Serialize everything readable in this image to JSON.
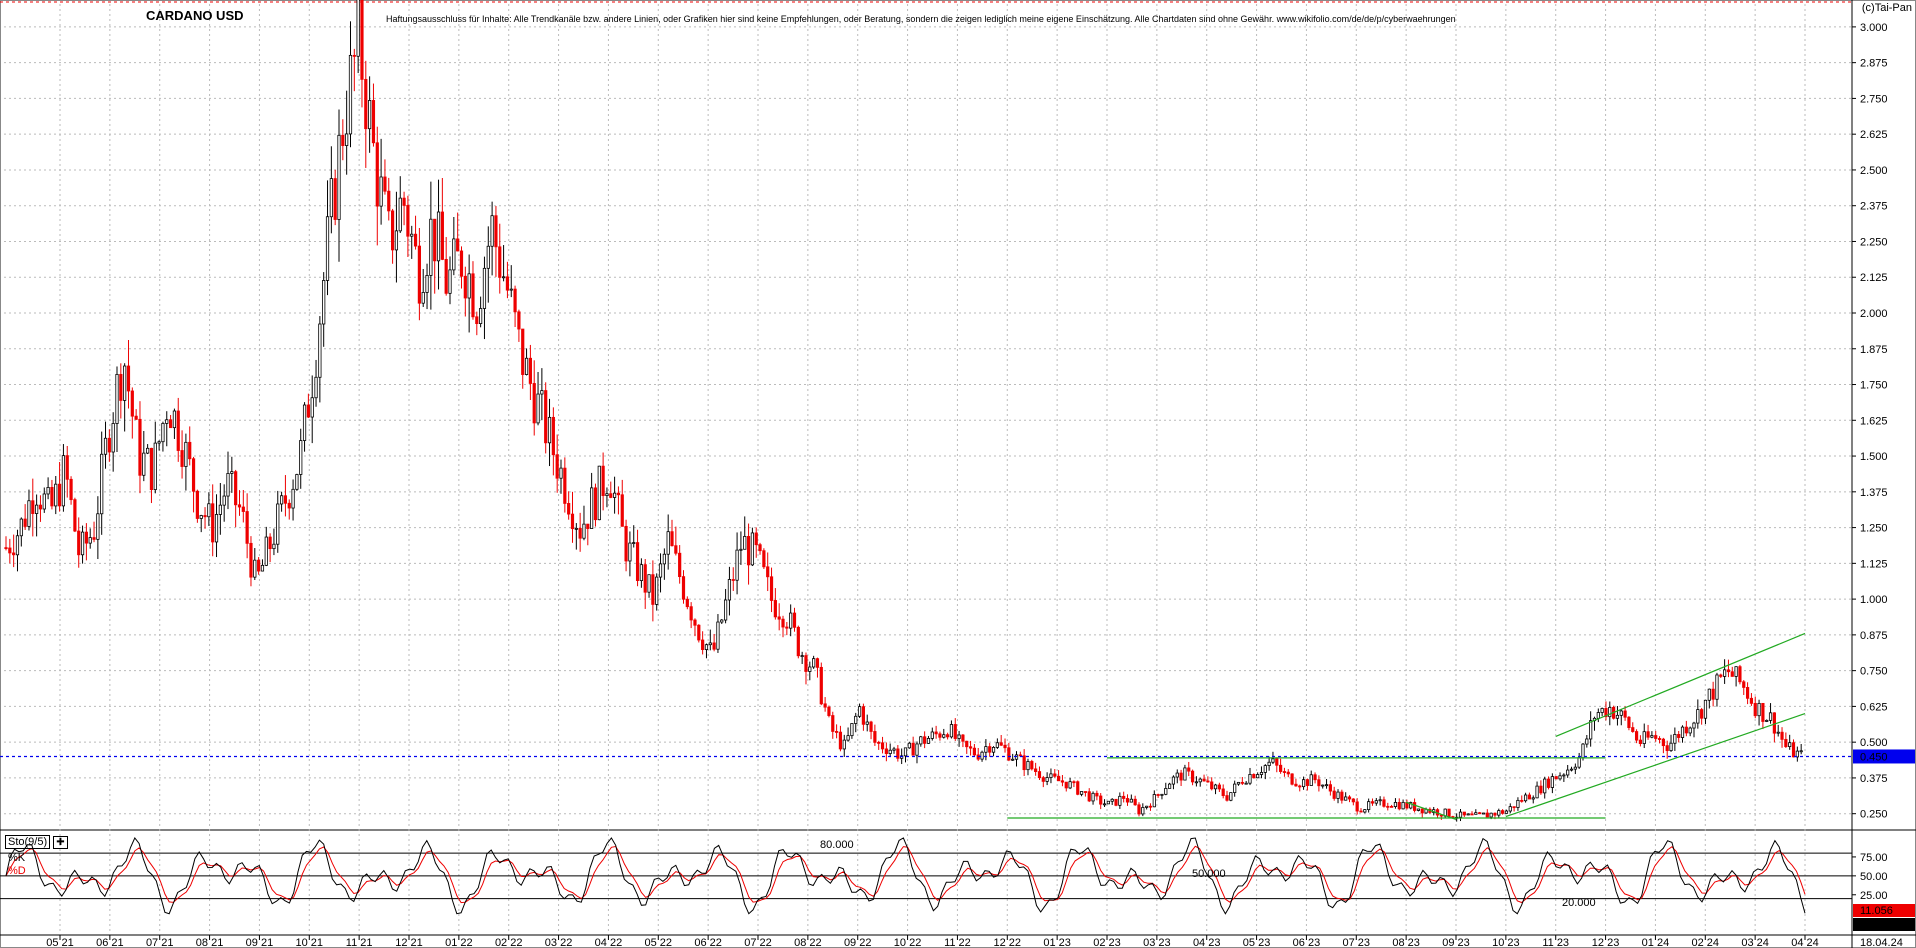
{
  "title": "CARDANO USD",
  "disclaimer": "Haftungsausschluss für Inhalte: Alle Trendkanäle bzw. andere Linien, oder Grafiken hier sind keine Empfehlungen, oder Beratung, sondern die zeigen lediglich meine eigene Einschätzung. Alle Chartdaten sind ohne Gewähr.  www.wikifolio.com/de/de/p/cyberwaehrungen",
  "credit": "(c)Tai-Pan",
  "indicator": {
    "name": "Sto(9/5)",
    "k_label": "%K",
    "d_label": "%D",
    "levels": [
      "80.000",
      "50.000",
      "20.000"
    ]
  },
  "colors": {
    "up": "#000000",
    "down": "#ee0000",
    "trend": "#22aa22",
    "price_line": "#0000ee",
    "grid": "#bbbbbb",
    "k": "#000000",
    "d": "#ee0000"
  },
  "chart_data": [
    {
      "type": "candlestick",
      "title": "CARDANO USD",
      "y_ticks": [
        "3.000",
        "2.875",
        "2.750",
        "2.625",
        "2.500",
        "2.375",
        "2.250",
        "2.125",
        "2.000",
        "1.875",
        "1.750",
        "1.625",
        "1.500",
        "1.375",
        "1.250",
        "1.125",
        "1.000",
        "0.875",
        "0.750",
        "0.625",
        "0.500",
        "0.375",
        "0.250"
      ],
      "ylim": [
        0.2,
        3.08
      ],
      "x_labels": [
        "05 21",
        "06 21",
        "07 21",
        "08 21",
        "09 21",
        "10 21",
        "11 21",
        "12 21",
        "01 22",
        "02 22",
        "03 22",
        "04 22",
        "05 22",
        "06 22",
        "07 22",
        "08 22",
        "09 22",
        "10 22",
        "11 22",
        "12 22",
        "01 23",
        "02 23",
        "03 23",
        "04 23",
        "05 23",
        "06 23",
        "07 23",
        "08 23",
        "09 23",
        "10 23",
        "11 23",
        "12 23",
        "01 24",
        "02 24",
        "03 24",
        "04 24"
      ],
      "last_price": "0.450",
      "last_date": "18.04.24",
      "close_path": [
        1.18,
        1.25,
        1.4,
        1.3,
        1.45,
        1.15,
        1.25,
        1.6,
        1.85,
        1.5,
        1.45,
        1.7,
        1.55,
        1.35,
        1.25,
        1.4,
        1.3,
        1.05,
        1.2,
        1.35,
        1.5,
        1.85,
        2.3,
        2.7,
        2.95,
        2.55,
        2.25,
        2.4,
        2.15,
        2.3,
        2.1,
        2.2,
        2.05,
        2.3,
        2.1,
        1.85,
        1.7,
        1.55,
        1.4,
        1.25,
        1.35,
        1.45,
        1.2,
        1.1,
        1.0,
        1.2,
        1.05,
        0.9,
        0.8,
        1.0,
        1.2,
        1.15,
        1.0,
        0.95,
        0.82,
        0.75,
        0.55,
        0.48,
        0.62,
        0.5,
        0.48,
        0.45,
        0.5,
        0.52,
        0.55,
        0.48,
        0.46,
        0.5,
        0.47,
        0.43,
        0.4,
        0.37,
        0.36,
        0.33,
        0.3,
        0.28,
        0.31,
        0.26,
        0.3,
        0.36,
        0.39,
        0.37,
        0.34,
        0.31,
        0.37,
        0.4,
        0.43,
        0.38,
        0.36,
        0.37,
        0.33,
        0.3,
        0.27,
        0.28,
        0.29,
        0.28,
        0.27,
        0.26,
        0.25,
        0.24,
        0.24,
        0.25,
        0.26,
        0.3,
        0.33,
        0.37,
        0.4,
        0.45,
        0.6,
        0.62,
        0.58,
        0.5,
        0.52,
        0.49,
        0.55,
        0.6,
        0.68,
        0.75,
        0.7,
        0.62,
        0.58,
        0.48,
        0.45
      ],
      "trendlines": [
        {
          "from": [
            "02 23",
            0.445
          ],
          "to": [
            "06 23",
            0.445
          ]
        },
        {
          "from": [
            "12 22",
            0.235
          ],
          "to": [
            "12 23",
            0.235
          ]
        },
        {
          "from": [
            "06 23",
            0.445
          ],
          "to": [
            "12 23",
            0.445
          ]
        },
        {
          "from": [
            "08 23",
            0.29
          ],
          "to": [
            "09 23",
            0.23
          ]
        },
        {
          "from": [
            "10 23",
            0.24
          ],
          "to": [
            "04 24",
            0.6
          ]
        },
        {
          "from": [
            "11 23",
            0.52
          ],
          "to": [
            "04 24",
            0.88
          ]
        }
      ]
    },
    {
      "type": "line",
      "title": "Sto(9/5)",
      "y_ticks": [
        "75.00",
        "50.00",
        "25.00"
      ],
      "levels": [
        80,
        50,
        20
      ],
      "ylim": [
        -5.675,
        100
      ],
      "last_k": "11.056",
      "last_d": "-5.675",
      "series": [
        {
          "name": "%K"
        },
        {
          "name": "%D"
        }
      ]
    }
  ]
}
